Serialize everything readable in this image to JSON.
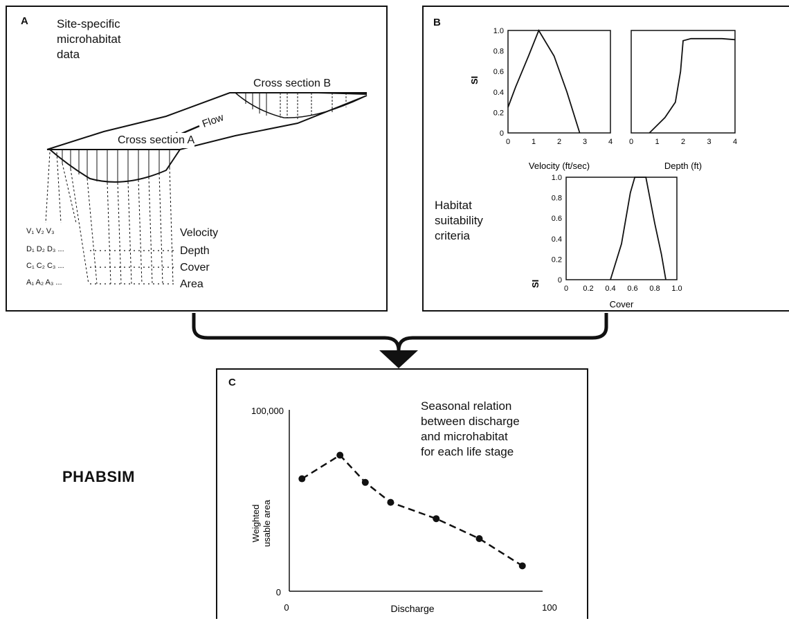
{
  "panelA": {
    "label": "A",
    "title_lines": [
      "Site-specific",
      "microhabitat",
      "data"
    ],
    "cross_section_a": "Cross section A",
    "cross_section_b": "Cross section B",
    "flow": "Flow",
    "rows": [
      {
        "symbols": "V₁  V₂  V₃",
        "label": "Velocity"
      },
      {
        "symbols": "D₁  D₂  D₃ ...",
        "label": "Depth"
      },
      {
        "symbols": "C₁  C₂  C₃ ...",
        "label": "Cover"
      },
      {
        "symbols": "A₁  A₂  A₃ ...",
        "label": "Area"
      }
    ]
  },
  "panelB": {
    "label": "B",
    "caption_lines": [
      "Habitat",
      "suitability",
      "criteria"
    ],
    "si_label": "SI",
    "velocity": {
      "xlabel": "Velocity (ft/sec)",
      "xticks": [
        "0",
        "1",
        "2",
        "3",
        "4"
      ],
      "yticks": [
        "0",
        "0.2",
        "0.4",
        "0.6",
        "0.8",
        "1.0"
      ],
      "curve": [
        [
          0,
          0.25
        ],
        [
          0.3,
          0.45
        ],
        [
          0.8,
          0.75
        ],
        [
          1.2,
          1.0
        ],
        [
          1.8,
          0.75
        ],
        [
          2.3,
          0.4
        ],
        [
          2.8,
          0.0
        ]
      ]
    },
    "depth": {
      "xlabel": "Depth (ft)",
      "xticks": [
        "0",
        "1",
        "2",
        "3",
        "4"
      ],
      "curve": [
        [
          0.7,
          0.0
        ],
        [
          0.9,
          0.05
        ],
        [
          1.3,
          0.15
        ],
        [
          1.7,
          0.3
        ],
        [
          1.9,
          0.6
        ],
        [
          2.0,
          0.9
        ],
        [
          2.3,
          0.92
        ],
        [
          3.5,
          0.92
        ],
        [
          4.0,
          0.91
        ]
      ]
    },
    "cover": {
      "xlabel": "Cover",
      "xticks": [
        "0",
        "0.2",
        "0.4",
        "0.6",
        "0.8",
        "1.0"
      ],
      "yticks": [
        "0",
        "0.2",
        "0.4",
        "0.6",
        "0.8",
        "1.0"
      ],
      "curve": [
        [
          0.4,
          0.0
        ],
        [
          0.5,
          0.35
        ],
        [
          0.58,
          0.85
        ],
        [
          0.62,
          1.0
        ],
        [
          0.72,
          1.0
        ],
        [
          0.8,
          0.55
        ],
        [
          0.86,
          0.25
        ],
        [
          0.9,
          0.0
        ]
      ]
    }
  },
  "panelC": {
    "label": "C",
    "caption_lines": [
      "Seasonal relation",
      "between discharge",
      "and microhabitat",
      "for each life stage"
    ],
    "ylabel_lines": [
      "Weighted",
      "usable area"
    ],
    "xlabel": "Discharge",
    "ytick_top": "100,000",
    "ytick_bottom": "0",
    "xtick_left": "0",
    "xtick_right": "100"
  },
  "main_label": "PHABSIM",
  "chart_data": {
    "type": "line",
    "x": [
      5,
      20,
      30,
      40,
      58,
      75,
      92
    ],
    "series": [
      {
        "values": [
          62000,
          75000,
          60000,
          49000,
          40000,
          29000,
          14000
        ]
      }
    ],
    "xlabel": "Discharge",
    "ylabel": "Weighted usable area",
    "xlim": [
      0,
      100
    ],
    "ylim": [
      0,
      100000
    ]
  }
}
